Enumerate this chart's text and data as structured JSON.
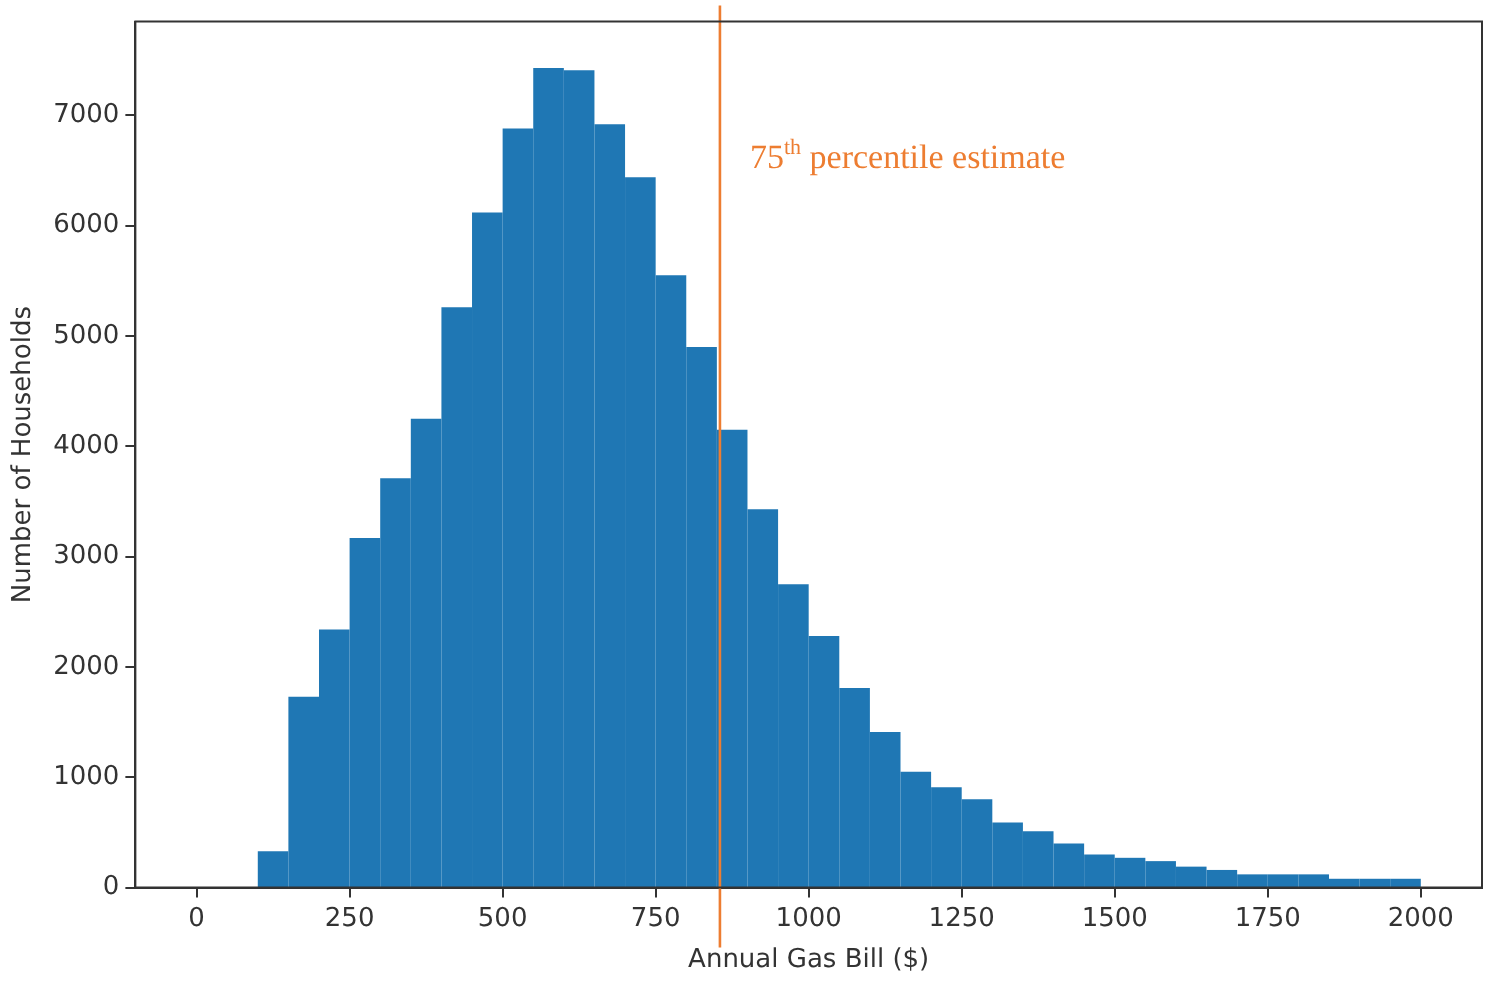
{
  "chart_data": {
    "type": "histogram",
    "xlabel": "Annual Gas Bill ($)",
    "ylabel": "Number of Households",
    "bins": [
      0,
      50,
      100,
      150,
      200,
      250,
      300,
      350,
      400,
      450,
      500,
      550,
      600,
      650,
      700,
      750,
      800,
      850,
      900,
      950,
      1000,
      1050,
      1100,
      1150,
      1200,
      1250,
      1300,
      1350,
      1400,
      1450,
      1500,
      1550,
      1600,
      1650,
      1700,
      1750,
      1800,
      1850,
      1900,
      1950,
      2000
    ],
    "values": [
      0,
      0,
      330,
      1730,
      2340,
      3170,
      3710,
      4250,
      5260,
      6120,
      6880,
      7430,
      7410,
      6920,
      6440,
      5550,
      4900,
      4150,
      3430,
      2750,
      2280,
      1810,
      1410,
      1050,
      910,
      800,
      590,
      510,
      400,
      300,
      270,
      240,
      190,
      160,
      120,
      120,
      120,
      80,
      80,
      80
    ],
    "color": "#1f77b4",
    "xlim": [
      -100,
      2100
    ],
    "xticks": [
      0,
      250,
      500,
      750,
      1000,
      1250,
      1500,
      1750,
      2000
    ],
    "ylim": [
      0,
      7850
    ],
    "yticks": [
      0,
      1000,
      2000,
      3000,
      4000,
      5000,
      6000,
      7000
    ],
    "grid": false,
    "legend": false,
    "ref_lines": [
      {
        "axis": "x",
        "value": 855,
        "label": "75$^{th}$ percentile estimate",
        "color": "#ed7d31"
      }
    ]
  }
}
